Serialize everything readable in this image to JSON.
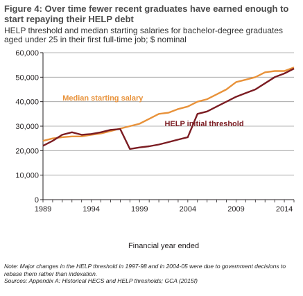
{
  "title": "Figure 4: Over time fewer recent graduates have earned enough to start repaying their HELP debt",
  "subtitle": "HELP threshold and median starting salaries for bachelor-degree graduates aged under 25 in their first full-time job; $ nominal",
  "notes": {
    "note": "Note: Major changes in the HELP threshold in 1997-98 and in 2004-05 were due to government decisions to rebase them rather than indexation.",
    "sources": "Sources: Appendix A: Historical HECS and HELP thresholds; GCA (2015f)"
  },
  "chart_data": {
    "type": "line",
    "xlabel": "Financial year ended",
    "ylabel": "",
    "xlim": [
      1989,
      2015
    ],
    "ylim": [
      0,
      60000
    ],
    "x_ticks": [
      1989,
      1994,
      1999,
      2004,
      2009,
      2014
    ],
    "x_tick_labels": [
      "1989",
      "1994",
      "1999",
      "2004",
      "2009",
      "2014"
    ],
    "y_ticks": [
      0,
      10000,
      20000,
      30000,
      40000,
      50000,
      60000
    ],
    "y_tick_labels": [
      "0",
      "10,000",
      "20,000",
      "30,000",
      "40,000",
      "50,000",
      "60,000"
    ],
    "grid": "horizontal",
    "series": [
      {
        "name": "Median starting salary",
        "color": "#e8923a",
        "label_at": [
          1995.2,
          40500
        ],
        "x": [
          1989,
          1990,
          1991,
          1992,
          1993,
          1994,
          1995,
          1996,
          1997,
          1998,
          1999,
          2000,
          2001,
          2002,
          2003,
          2004,
          2005,
          2006,
          2007,
          2008,
          2009,
          2010,
          2011,
          2012,
          2013,
          2014,
          2015
        ],
        "values": [
          24000,
          25000,
          25500,
          25800,
          25800,
          26500,
          27000,
          28000,
          29000,
          30000,
          31000,
          33000,
          35000,
          35500,
          37000,
          38000,
          40000,
          41000,
          43000,
          45000,
          48000,
          49000,
          50000,
          52000,
          52500,
          52500,
          54000
        ]
      },
      {
        "name": "HELP initial threshold",
        "color": "#7b1c22",
        "label_at": [
          2005.7,
          30000
        ],
        "x": [
          1989,
          1990,
          1991,
          1992,
          1993,
          1994,
          1995,
          1996,
          1997,
          1998,
          1999,
          2000,
          2001,
          2002,
          2003,
          2004,
          2005,
          2006,
          2007,
          2008,
          2009,
          2010,
          2011,
          2012,
          2013,
          2014,
          2015
        ],
        "values": [
          22000,
          24000,
          26500,
          27500,
          26500,
          26800,
          27500,
          28500,
          28800,
          20700,
          21300,
          21800,
          22500,
          23500,
          24500,
          25500,
          35000,
          36000,
          38000,
          40000,
          42000,
          43500,
          45000,
          47500,
          50000,
          51500,
          53500
        ]
      }
    ]
  }
}
